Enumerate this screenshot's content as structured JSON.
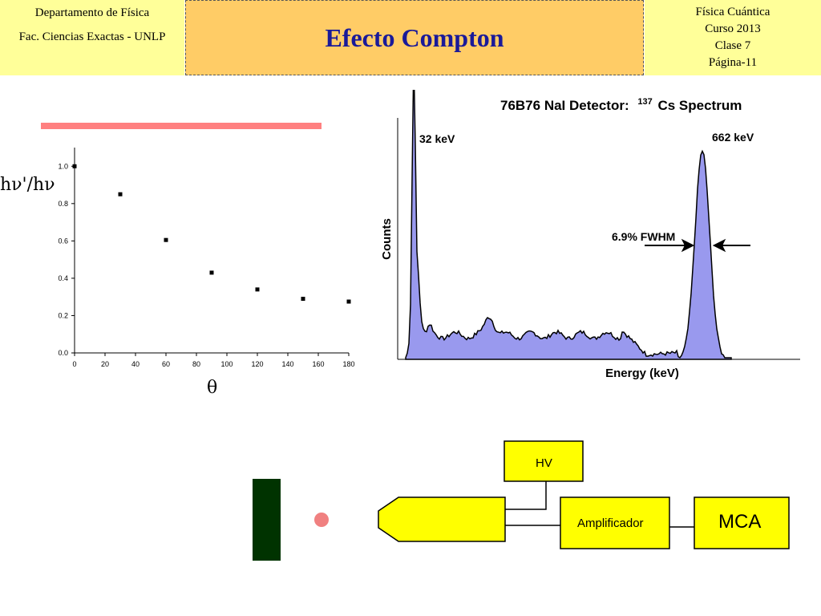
{
  "header": {
    "left": [
      "Departamento de Física",
      "Fac. Ciencias Exactas - UNLP"
    ],
    "title": "Efecto Compton",
    "right": [
      "Física Cuántica",
      "Curso 2013",
      "Clase 7",
      "Página-11"
    ]
  },
  "chart_data": [
    {
      "type": "scatter",
      "ylabel": "hν'/hν",
      "xlabel": "θ",
      "xlim": [
        0,
        180
      ],
      "ylim": [
        0,
        1.1
      ],
      "xticks": [
        "0",
        "20",
        "40",
        "60",
        "80",
        "100",
        "120",
        "140",
        "160",
        "180"
      ],
      "yticks": [
        "0.0",
        "0.2",
        "0.4",
        "0.6",
        "0.8",
        "1.0"
      ],
      "x": [
        0,
        30,
        60,
        90,
        120,
        150,
        180
      ],
      "y": [
        1.0,
        0.85,
        0.605,
        0.43,
        0.34,
        0.29,
        0.275
      ]
    },
    {
      "type": "area",
      "title_main": "76B76 NaI Detector:",
      "title_super": "137",
      "title_tail": "Cs Spectrum",
      "xlabel": "Energy (keV)",
      "ylabel": "Counts",
      "annotations": [
        "32 keV",
        "662 keV",
        "6.9% FWHM"
      ],
      "colors": {
        "fill": "#9999ee"
      }
    }
  ],
  "diagram": {
    "hv_label": "HV",
    "amplifier_label": "Amplificador",
    "mca_label": "MCA",
    "colors": {
      "box": "#ffff00",
      "source_block": "#003300",
      "dot": "#f08080"
    }
  }
}
